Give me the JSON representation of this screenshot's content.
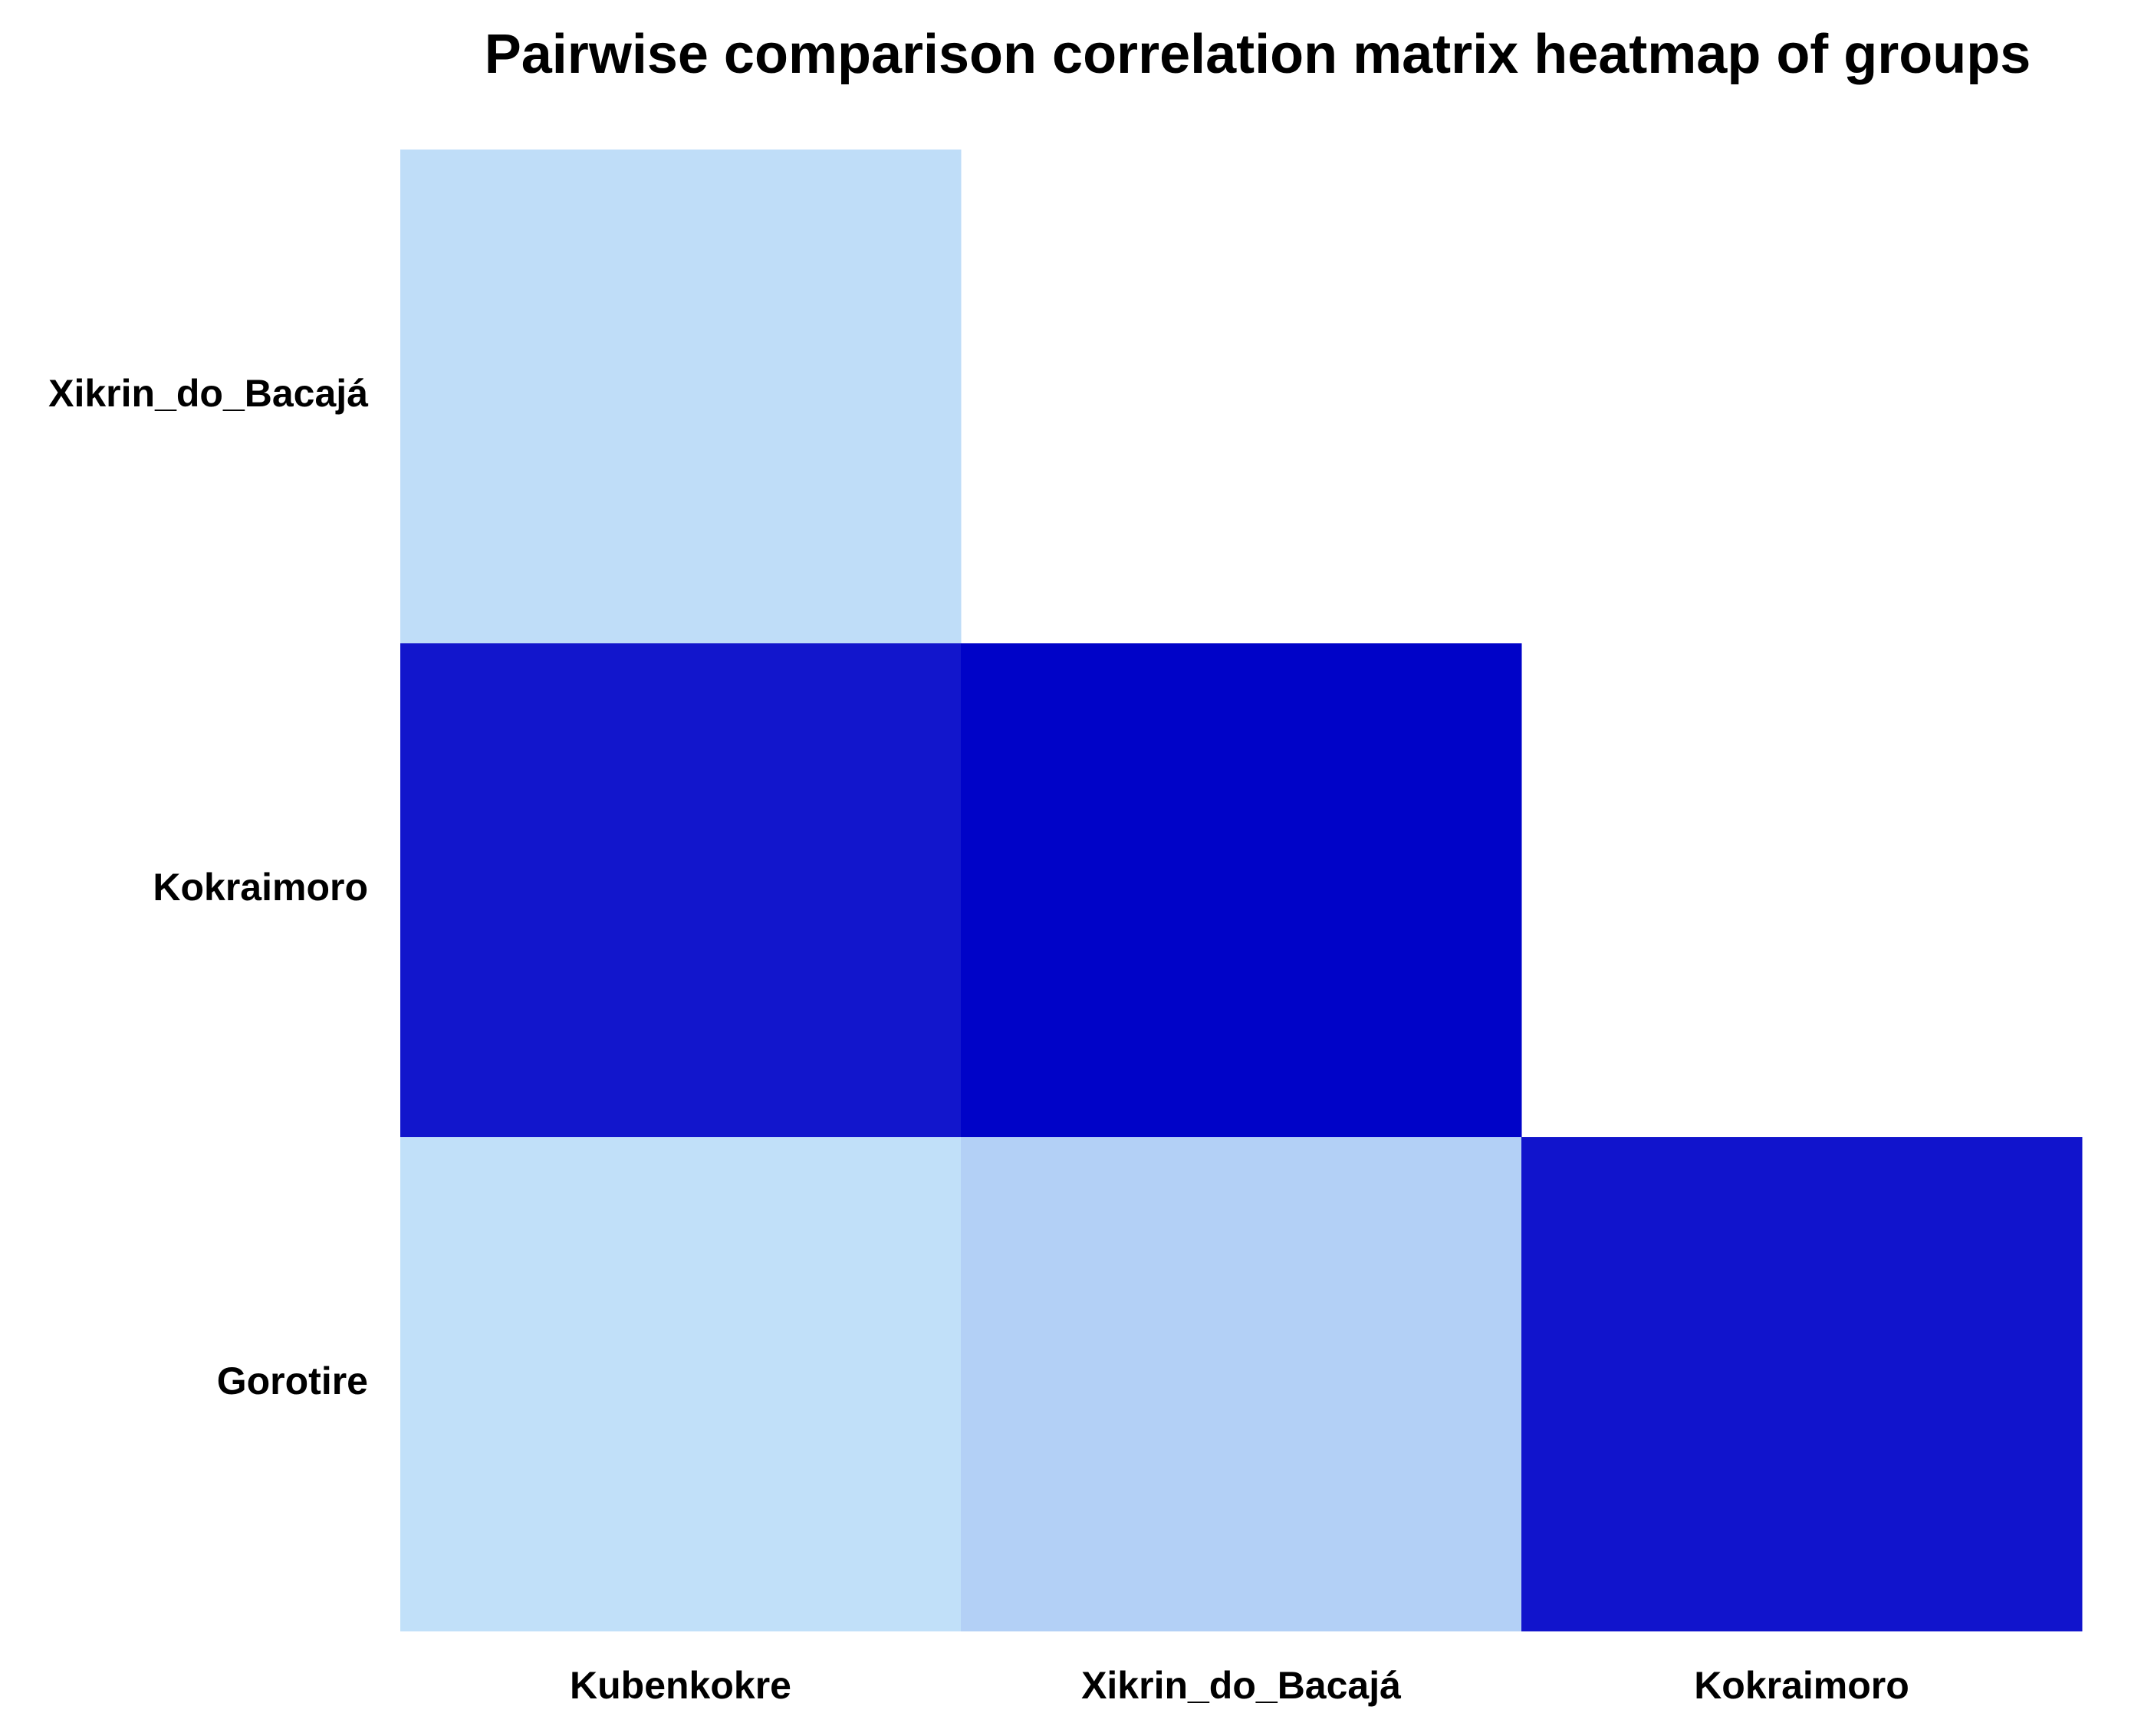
{
  "chart_data": {
    "type": "heatmap",
    "title": "Pairwise comparison correlation matrix heatmap of groups",
    "xlabel": "",
    "ylabel": "",
    "x_categories": [
      "Kubenkokre",
      "Xikrin_do_Bacajá",
      "Kokraimoro"
    ],
    "y_categories": [
      "Xikrin_do_Bacajá",
      "Kokraimoro",
      "Gorotire"
    ],
    "layout": "lower-triangle",
    "legend": "none",
    "grid": false,
    "cells": [
      {
        "row": "Xikrin_do_Bacajá",
        "col": "Kubenkokre",
        "color": "#BFDDF8"
      },
      {
        "row": "Kokraimoro",
        "col": "Kubenkokre",
        "color": "#1216CC"
      },
      {
        "row": "Kokraimoro",
        "col": "Xikrin_do_Bacajá",
        "color": "#0003C8"
      },
      {
        "row": "Gorotire",
        "col": "Kubenkokre",
        "color": "#C1E0F9"
      },
      {
        "row": "Gorotire",
        "col": "Xikrin_do_Bacajá",
        "color": "#B3D0F6"
      },
      {
        "row": "Gorotire",
        "col": "Kokraimoro",
        "color": "#1114CC"
      }
    ]
  }
}
